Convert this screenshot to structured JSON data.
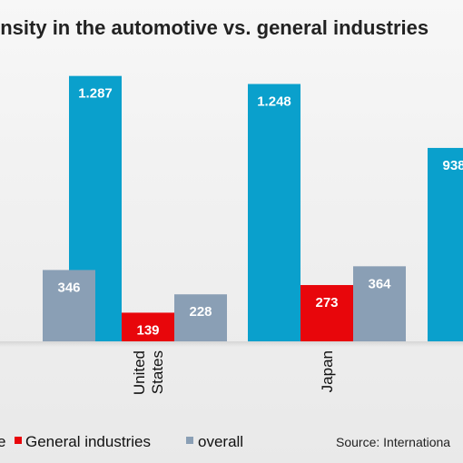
{
  "chart_data": {
    "type": "bar",
    "title": "ensity in the automotive vs. general industries",
    "categories": [
      "",
      "United States",
      "Japan",
      ""
    ],
    "category_lines": [
      [
        ""
      ],
      [
        "United",
        "States"
      ],
      [
        "Japan"
      ],
      [
        ""
      ]
    ],
    "series": [
      {
        "name": "e",
        "color": "#0aa0cc",
        "values": [
          null,
          1287,
          1248,
          938
        ]
      },
      {
        "name": "General industries",
        "color": "#e8060b",
        "values": [
          null,
          139,
          273,
          null
        ]
      },
      {
        "name": "overall",
        "color": "#8a9fb5",
        "values": [
          346,
          228,
          364,
          null
        ]
      }
    ],
    "value_labels": [
      [
        "",
        "1.287",
        "1.248",
        "938"
      ],
      [
        "",
        "139",
        "273",
        ""
      ],
      [
        "346",
        "228",
        "364",
        ""
      ]
    ],
    "ylim": [
      0,
      1400
    ],
    "grid": false,
    "legend_position": "bottom",
    "source": "Source: Internationa"
  }
}
